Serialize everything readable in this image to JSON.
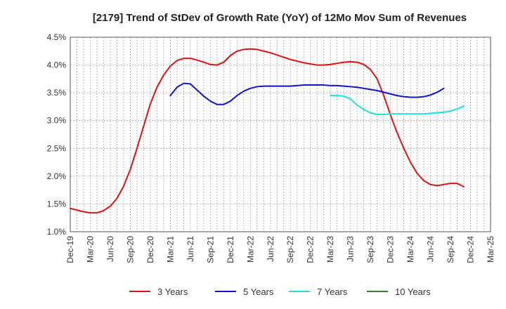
{
  "chart_data": {
    "type": "line",
    "title": "[2179]  Trend of StDev of Growth Rate (YoY) of 12Mo Mov Sum of Revenues",
    "xlabel": "",
    "ylabel": "",
    "x_start": "2019-12",
    "x_end": "2025-03",
    "ylim": [
      1.0,
      4.5
    ],
    "yticks": [
      1.0,
      1.5,
      2.0,
      2.5,
      3.0,
      3.5,
      4.0,
      4.5
    ],
    "ytick_labels": [
      "1.0%",
      "1.5%",
      "2.0%",
      "2.5%",
      "3.0%",
      "3.5%",
      "4.0%",
      "4.5%"
    ],
    "xtick_labels": [
      "Dec-19",
      "Mar-20",
      "Jun-20",
      "Sep-20",
      "Dec-20",
      "Mar-21",
      "Jun-21",
      "Sep-21",
      "Dec-21",
      "Mar-22",
      "Jun-22",
      "Sep-22",
      "Dec-22",
      "Mar-23",
      "Jun-23",
      "Sep-23",
      "Dec-23",
      "Mar-24",
      "Jun-24",
      "Sep-24",
      "Dec-24",
      "Mar-25"
    ],
    "grid": true,
    "legend_position": "bottom",
    "series": [
      {
        "name": "3 Years",
        "color": "#dd1111",
        "start_index": 0,
        "values": [
          1.42,
          1.39,
          1.36,
          1.34,
          1.34,
          1.38,
          1.46,
          1.6,
          1.82,
          2.12,
          2.5,
          2.9,
          3.3,
          3.6,
          3.82,
          3.98,
          4.08,
          4.12,
          4.12,
          4.09,
          4.05,
          4.01,
          4.0,
          4.05,
          4.17,
          4.25,
          4.28,
          4.29,
          4.28,
          4.25,
          4.22,
          4.18,
          4.14,
          4.1,
          4.07,
          4.04,
          4.02,
          4.0,
          4.0,
          4.01,
          4.03,
          4.05,
          4.06,
          4.05,
          4.01,
          3.92,
          3.75,
          3.45,
          3.1,
          2.78,
          2.5,
          2.25,
          2.05,
          1.92,
          1.85,
          1.83,
          1.85,
          1.87,
          1.87,
          1.81
        ]
      },
      {
        "name": "5 Years",
        "color": "#1111cc",
        "start_index": 15,
        "values": [
          3.45,
          3.6,
          3.67,
          3.66,
          3.55,
          3.44,
          3.35,
          3.29,
          3.29,
          3.35,
          3.45,
          3.53,
          3.58,
          3.61,
          3.62,
          3.62,
          3.62,
          3.62,
          3.62,
          3.63,
          3.64,
          3.64,
          3.64,
          3.64,
          3.63,
          3.63,
          3.62,
          3.61,
          3.6,
          3.58,
          3.56,
          3.54,
          3.51,
          3.48,
          3.45,
          3.43,
          3.42,
          3.42,
          3.43,
          3.46,
          3.51,
          3.58
        ]
      },
      {
        "name": "7 Years",
        "color": "#22dddd",
        "start_index": 39,
        "values": [
          3.45,
          3.45,
          3.44,
          3.39,
          3.28,
          3.2,
          3.14,
          3.11,
          3.11,
          3.12,
          3.12,
          3.12,
          3.12,
          3.12,
          3.12,
          3.13,
          3.14,
          3.15,
          3.17,
          3.21,
          3.26
        ]
      },
      {
        "name": "10 Years",
        "color": "#228822",
        "start_index": 0,
        "values": []
      }
    ]
  }
}
